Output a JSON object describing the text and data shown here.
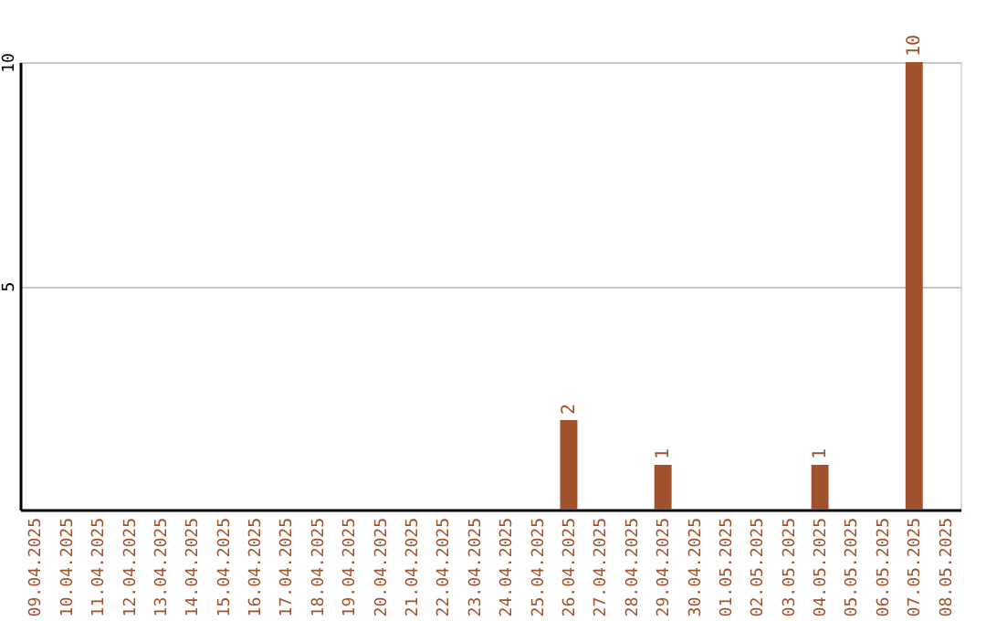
{
  "chart_data": {
    "type": "bar",
    "categories": [
      "09.04.2025",
      "10.04.2025",
      "11.04.2025",
      "12.04.2025",
      "13.04.2025",
      "14.04.2025",
      "15.04.2025",
      "16.04.2025",
      "17.04.2025",
      "18.04.2025",
      "19.04.2025",
      "20.04.2025",
      "21.04.2025",
      "22.04.2025",
      "23.04.2025",
      "24.04.2025",
      "25.04.2025",
      "26.04.2025",
      "27.04.2025",
      "28.04.2025",
      "29.04.2025",
      "30.04.2025",
      "01.05.2025",
      "02.05.2025",
      "03.05.2025",
      "04.05.2025",
      "05.05.2025",
      "06.05.2025",
      "07.05.2025",
      "08.05.2025"
    ],
    "values": [
      0,
      0,
      0,
      0,
      0,
      0,
      0,
      0,
      0,
      0,
      0,
      0,
      0,
      0,
      0,
      0,
      0,
      2,
      0,
      0,
      1,
      0,
      0,
      0,
      0,
      1,
      0,
      0,
      10,
      0
    ],
    "value_labels": [
      null,
      null,
      null,
      null,
      null,
      null,
      null,
      null,
      null,
      null,
      null,
      null,
      null,
      null,
      null,
      null,
      null,
      "2",
      null,
      null,
      "1",
      null,
      null,
      null,
      null,
      "1",
      null,
      null,
      "10",
      null
    ],
    "color": "#a0522d",
    "ylim": [
      0,
      10
    ],
    "yticks": [
      5,
      10
    ],
    "grid": "y"
  }
}
